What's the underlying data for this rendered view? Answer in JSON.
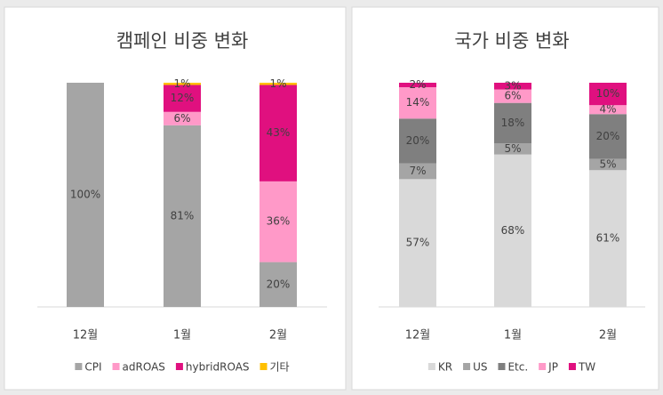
{
  "chart_data": [
    {
      "type": "bar",
      "stacked": true,
      "title": "캠페인 비중 변화",
      "categories": [
        "12월",
        "1월",
        "2월"
      ],
      "ylim": [
        0,
        100
      ],
      "series": [
        {
          "name": "CPI",
          "color": "#a5a5a5",
          "values": [
            100,
            81,
            20
          ],
          "value_labels": [
            "100%",
            "81%",
            "20%"
          ]
        },
        {
          "name": "adROAS",
          "color": "#ff99c8",
          "values": [
            0,
            6,
            36
          ],
          "value_labels": [
            null,
            "6%",
            "36%"
          ]
        },
        {
          "name": "hybridROAS",
          "color": "#e0107f",
          "values": [
            0,
            12,
            43
          ],
          "value_labels": [
            null,
            "12%",
            "43%"
          ]
        },
        {
          "name": "기타",
          "color": "#ffc000",
          "values": [
            0,
            1,
            1
          ],
          "value_labels": [
            null,
            "1%",
            "1%"
          ]
        }
      ]
    },
    {
      "type": "bar",
      "stacked": true,
      "title": "국가 비중 변화",
      "categories": [
        "12월",
        "1월",
        "2월"
      ],
      "ylim": [
        0,
        100
      ],
      "series": [
        {
          "name": "KR",
          "color": "#d9d9d9",
          "values": [
            57,
            68,
            61
          ],
          "value_labels": [
            "57%",
            "68%",
            "61%"
          ]
        },
        {
          "name": "US",
          "color": "#a5a5a5",
          "values": [
            7,
            5,
            5
          ],
          "value_labels": [
            "7%",
            "5%",
            "5%"
          ]
        },
        {
          "name": "Etc.",
          "color": "#7f7f7f",
          "values": [
            20,
            18,
            20
          ],
          "value_labels": [
            "20%",
            "18%",
            "20%"
          ]
        },
        {
          "name": "JP",
          "color": "#ff99c8",
          "values": [
            14,
            6,
            4
          ],
          "value_labels": [
            "14%",
            "6%",
            "4%"
          ]
        },
        {
          "name": "TW",
          "color": "#e0107f",
          "values": [
            2,
            3,
            10
          ],
          "value_labels": [
            "2%",
            "3%",
            "10%"
          ]
        }
      ]
    }
  ]
}
